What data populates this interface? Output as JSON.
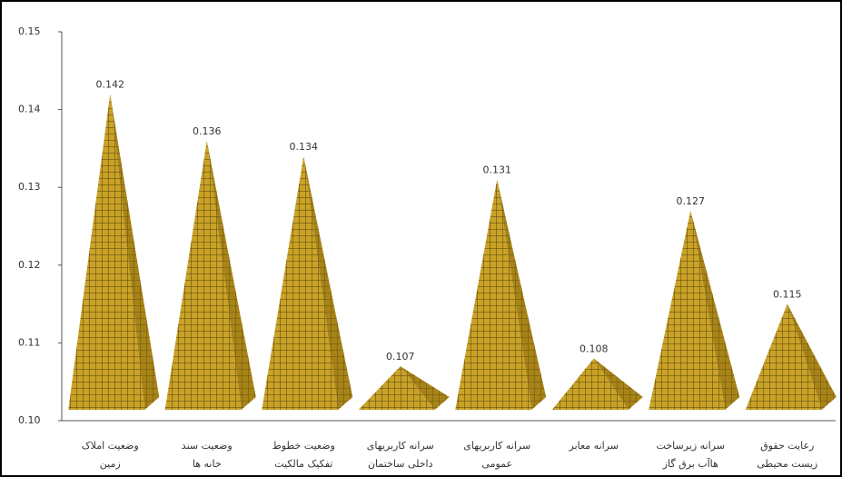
{
  "chart_data": {
    "type": "pyramid",
    "categories": [
      [
        "وضعیت املاک",
        "زمین"
      ],
      [
        "وضعیت سند",
        "خانه ها"
      ],
      [
        "وضعیت خطوط",
        "تفکیک مالکیت"
      ],
      [
        "سرانه کاربریهای",
        "داخلی ساختمان"
      ],
      [
        "سرانه کاربریهای",
        "عمومی"
      ],
      [
        "سرانه معابر"
      ],
      [
        "سرانه زیرساخت",
        "هاآب برق گاز"
      ],
      [
        "رعایت حقوق",
        "زیست محیطی"
      ]
    ],
    "values": [
      0.142,
      0.136,
      0.134,
      0.107,
      0.131,
      0.108,
      0.127,
      0.115
    ],
    "color": "#c9a227",
    "ylim": [
      0.1,
      0.15
    ],
    "yticks": [
      {
        "value": 0.1,
        "label": "0.10"
      },
      0.11,
      0.12,
      0.13,
      0.14,
      0.15
    ]
  }
}
